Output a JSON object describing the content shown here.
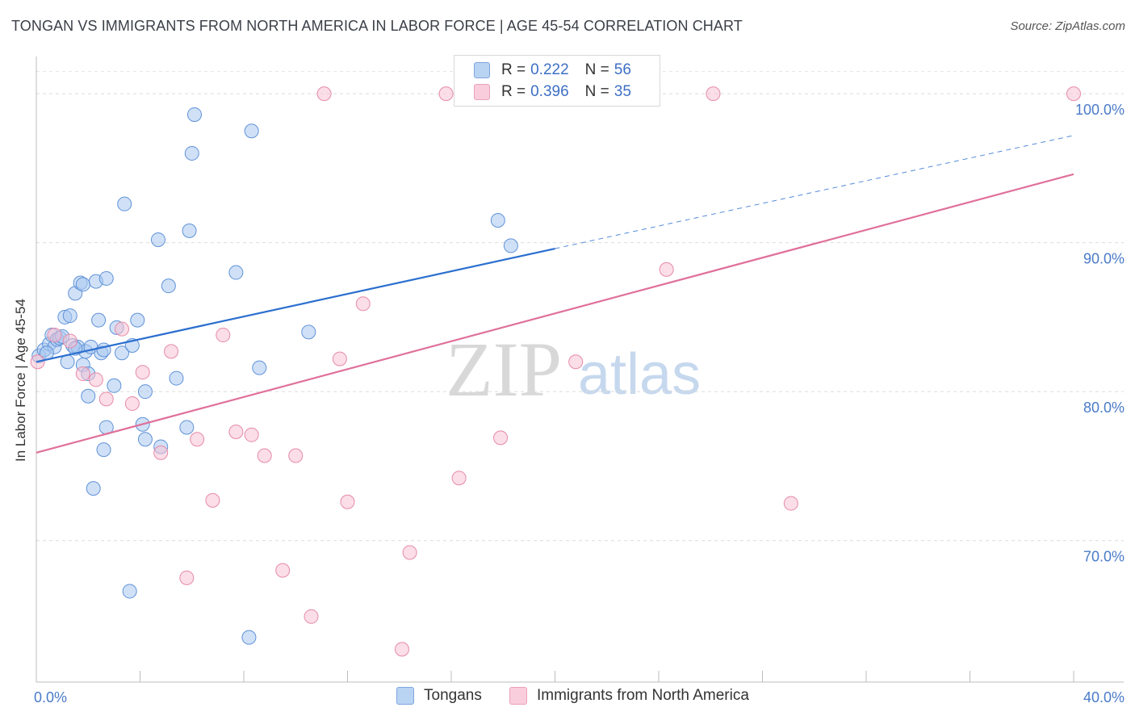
{
  "title": "TONGAN VS IMMIGRANTS FROM NORTH AMERICA IN LABOR FORCE | AGE 45-54 CORRELATION CHART",
  "source": "Source: ZipAtlas.com",
  "watermark": {
    "zip": "ZIP",
    "atlas": "atlas"
  },
  "legend": {
    "tongans": {
      "r_label": "R =",
      "r_value": "0.222",
      "n_label": "N =",
      "n_value": "56"
    },
    "immigrants": {
      "r_label": "R =",
      "r_value": "0.396",
      "n_label": "N =",
      "n_value": "35"
    }
  },
  "bottom_legend": {
    "tongans": "Tongans",
    "immigrants": "Immigrants from North America"
  },
  "chart_data": {
    "type": "scatter",
    "ylabel": "In Labor Force | Age 45-54",
    "xlim": [
      0,
      40
    ],
    "ylim": [
      60.5,
      102.5
    ],
    "x_ticks": [
      {
        "v": 0,
        "label": "0.0%"
      },
      {
        "v": 40,
        "label": "40.0%"
      }
    ],
    "y_ticks": [
      {
        "v": 70,
        "label": "70.0%"
      },
      {
        "v": 80,
        "label": "80.0%"
      },
      {
        "v": 90,
        "label": "90.0%"
      },
      {
        "v": 100,
        "label": "100.0%"
      }
    ],
    "grid": true,
    "colors": {
      "tongans_fill": "#a9c8f0",
      "tongans_stroke": "#5f92d8",
      "tongans_line": "#2b6fcf",
      "immigrants_fill": "#f7c3d4",
      "immigrants_stroke": "#e68aa8",
      "immigrants_line": "#e0709a"
    },
    "series": [
      {
        "name": "Tongans",
        "key": "tongans",
        "trend": {
          "x0": 0,
          "y0": 82.0,
          "x1": 20,
          "y1": 89.6,
          "dash_to_x": 40,
          "dash_to_y": 97.2
        },
        "points": [
          [
            0.1,
            82.4
          ],
          [
            0.3,
            82.8
          ],
          [
            0.5,
            83.2
          ],
          [
            0.6,
            83.8
          ],
          [
            0.7,
            83.0
          ],
          [
            0.8,
            83.5
          ],
          [
            0.9,
            83.6
          ],
          [
            1.0,
            83.7
          ],
          [
            1.1,
            85.0
          ],
          [
            1.2,
            82.0
          ],
          [
            1.3,
            85.1
          ],
          [
            1.4,
            83.1
          ],
          [
            1.5,
            86.6
          ],
          [
            1.6,
            83.0
          ],
          [
            1.7,
            87.3
          ],
          [
            1.8,
            87.2
          ],
          [
            1.8,
            81.8
          ],
          [
            1.9,
            82.7
          ],
          [
            2.0,
            79.7
          ],
          [
            2.0,
            81.2
          ],
          [
            2.1,
            83.0
          ],
          [
            2.2,
            73.5
          ],
          [
            2.3,
            87.4
          ],
          [
            2.4,
            84.8
          ],
          [
            2.5,
            82.6
          ],
          [
            2.6,
            82.8
          ],
          [
            2.6,
            76.1
          ],
          [
            2.7,
            87.6
          ],
          [
            2.7,
            77.6
          ],
          [
            3.0,
            80.4
          ],
          [
            3.1,
            84.3
          ],
          [
            3.3,
            82.6
          ],
          [
            3.4,
            92.6
          ],
          [
            3.6,
            66.6
          ],
          [
            3.7,
            83.1
          ],
          [
            3.9,
            84.8
          ],
          [
            4.1,
            77.8
          ],
          [
            4.2,
            80.0
          ],
          [
            4.2,
            76.8
          ],
          [
            4.7,
            90.2
          ],
          [
            4.8,
            76.3
          ],
          [
            5.1,
            87.1
          ],
          [
            5.4,
            80.9
          ],
          [
            5.8,
            77.6
          ],
          [
            5.9,
            90.8
          ],
          [
            6.0,
            96.0
          ],
          [
            6.1,
            98.6
          ],
          [
            7.7,
            88.0
          ],
          [
            8.2,
            63.5
          ],
          [
            8.3,
            97.5
          ],
          [
            8.6,
            81.6
          ],
          [
            10.5,
            84.0
          ],
          [
            17.8,
            91.5
          ],
          [
            18.3,
            89.8
          ],
          [
            1.5,
            82.9
          ],
          [
            0.4,
            82.6
          ]
        ]
      },
      {
        "name": "Immigrants from North America",
        "key": "immigrants",
        "trend": {
          "x0": 0,
          "y0": 75.9,
          "x1": 40,
          "y1": 94.6
        },
        "points": [
          [
            0.05,
            82.0
          ],
          [
            0.7,
            83.8
          ],
          [
            1.3,
            83.4
          ],
          [
            1.8,
            81.2
          ],
          [
            2.3,
            80.8
          ],
          [
            2.7,
            79.5
          ],
          [
            3.3,
            84.2
          ],
          [
            3.7,
            79.2
          ],
          [
            4.1,
            81.3
          ],
          [
            4.8,
            75.9
          ],
          [
            5.2,
            82.7
          ],
          [
            5.8,
            67.5
          ],
          [
            6.2,
            76.8
          ],
          [
            6.8,
            72.7
          ],
          [
            7.2,
            83.8
          ],
          [
            7.7,
            77.3
          ],
          [
            8.3,
            77.1
          ],
          [
            8.8,
            75.7
          ],
          [
            9.5,
            68.0
          ],
          [
            10.0,
            75.7
          ],
          [
            10.6,
            64.9
          ],
          [
            11.1,
            100.0
          ],
          [
            11.7,
            82.2
          ],
          [
            12.0,
            72.6
          ],
          [
            12.6,
            85.9
          ],
          [
            14.1,
            62.7
          ],
          [
            14.4,
            69.2
          ],
          [
            15.8,
            100.0
          ],
          [
            16.3,
            74.2
          ],
          [
            17.9,
            76.9
          ],
          [
            20.8,
            82.0
          ],
          [
            24.3,
            88.2
          ],
          [
            26.1,
            100.0
          ],
          [
            29.1,
            72.5
          ],
          [
            40.0,
            100.0
          ]
        ]
      }
    ]
  }
}
